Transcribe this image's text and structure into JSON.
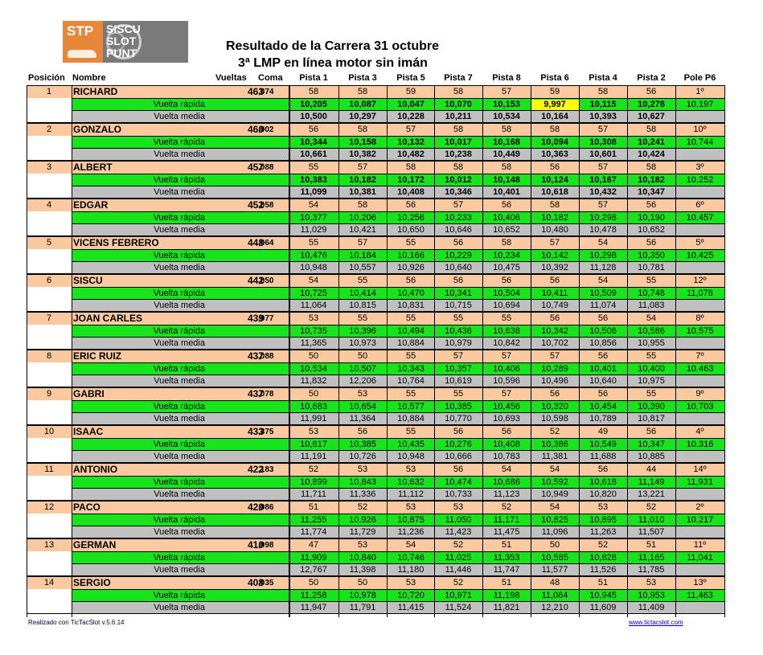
{
  "logo": {
    "left_text": "STP",
    "right_lines": [
      "SISCU",
      "SLOT",
      "PUNT"
    ]
  },
  "title_line1": "Resultado de la Carrera  31 octubre",
  "title_line2": "3ª LMP en línea motor sin imán",
  "headers": {
    "posicion": "Posición",
    "nombre": "Nombre",
    "vueltas": "Vueltas",
    "coma": "Coma",
    "pistas": [
      "Pista 1",
      "Pista 3",
      "Pista 5",
      "Pista 7",
      "Pista 8",
      "Pista 6",
      "Pista 4",
      "Pista 2"
    ],
    "pole": "Pole P6"
  },
  "labels": {
    "fast": "Vuelta rápida",
    "avg": "Vuelta media"
  },
  "colors": {
    "driver_row": "#fbc9a0",
    "fast_row": "#18e41c",
    "avg_row": "#c0c0c0",
    "highlight": "#ffff00"
  },
  "rows": [
    {
      "pos": "1",
      "name": "RICHARD",
      "laps": "463",
      "coma": ",074",
      "tracks": [
        "58",
        "58",
        "59",
        "58",
        "57",
        "59",
        "58",
        "56"
      ],
      "pole": "1º",
      "fast": [
        "10,205",
        "10,087",
        "10,047",
        "10,070",
        "10,153",
        "9,997",
        "10,115",
        "10,278"
      ],
      "pole_fast": "10,197",
      "avg": [
        "10,500",
        "10,297",
        "10,228",
        "10,211",
        "10,534",
        "10,164",
        "10,393",
        "10,627"
      ]
    },
    {
      "pos": "2",
      "name": "GONZALO",
      "laps": "460",
      "coma": ",002",
      "tracks": [
        "56",
        "58",
        "57",
        "58",
        "58",
        "58",
        "57",
        "58"
      ],
      "pole": "10º",
      "fast": [
        "10,344",
        "10,158",
        "10,132",
        "10,017",
        "10,168",
        "10,094",
        "10,308",
        "10,241"
      ],
      "pole_fast": "10,744",
      "avg": [
        "10,661",
        "10,382",
        "10,482",
        "10,238",
        "10,449",
        "10,363",
        "10,601",
        "10,424"
      ]
    },
    {
      "pos": "3",
      "name": "ALBERT",
      "laps": "457",
      "coma": ",088",
      "tracks": [
        "55",
        "57",
        "58",
        "58",
        "58",
        "56",
        "57",
        "58"
      ],
      "pole": "3º",
      "fast": [
        "10,383",
        "10,182",
        "10,172",
        "10,012",
        "10,148",
        "10,124",
        "10,167",
        "10,182"
      ],
      "pole_fast": "10,252",
      "avg": [
        "11,099",
        "10,381",
        "10,408",
        "10,346",
        "10,401",
        "10,618",
        "10,432",
        "10,347"
      ]
    },
    {
      "pos": "4",
      "name": "EDGAR",
      "laps": "452",
      "coma": ",058",
      "tracks": [
        "54",
        "58",
        "56",
        "57",
        "56",
        "58",
        "57",
        "56"
      ],
      "pole": "6º",
      "fast": [
        "10,377",
        "10,206",
        "10,256",
        "10,233",
        "10,406",
        "10,182",
        "10,298",
        "10,190"
      ],
      "pole_fast": "10,457",
      "avg": [
        "11,029",
        "10,421",
        "10,650",
        "10,646",
        "10,652",
        "10,480",
        "10,478",
        "10,652"
      ]
    },
    {
      "pos": "5",
      "name": "VICENS FEBRERO",
      "laps": "448",
      "coma": ",064",
      "tracks": [
        "55",
        "57",
        "55",
        "56",
        "58",
        "57",
        "54",
        "56"
      ],
      "pole": "5º",
      "fast": [
        "10,476",
        "10,184",
        "10,166",
        "10,229",
        "10,234",
        "10,142",
        "10,298",
        "10,350"
      ],
      "pole_fast": "10,425",
      "avg": [
        "10,948",
        "10,557",
        "10,926",
        "10,640",
        "10,475",
        "10,392",
        "11,128",
        "10,781"
      ]
    },
    {
      "pos": "6",
      "name": "SISCU",
      "laps": "442",
      "coma": ",050",
      "tracks": [
        "54",
        "55",
        "56",
        "56",
        "56",
        "56",
        "54",
        "55"
      ],
      "pole": "12º",
      "fast": [
        "10,725",
        "10,414",
        "10,470",
        "10,341",
        "10,504",
        "10,411",
        "10,509",
        "10,748"
      ],
      "pole_fast": "11,078",
      "avg": [
        "11,064",
        "10,815",
        "10,831",
        "10,715",
        "10,694",
        "10,749",
        "11,074",
        "11,083"
      ]
    },
    {
      "pos": "7",
      "name": "JOAN CARLES",
      "laps": "439",
      "coma": ",077",
      "tracks": [
        "53",
        "55",
        "55",
        "55",
        "55",
        "56",
        "56",
        "54"
      ],
      "pole": "8º",
      "fast": [
        "10,735",
        "10,396",
        "10,494",
        "10,436",
        "10,638",
        "10,342",
        "10,506",
        "10,586"
      ],
      "pole_fast": "10,575",
      "avg": [
        "11,365",
        "10,973",
        "10,884",
        "10,979",
        "10,842",
        "10,702",
        "10,856",
        "10,955"
      ]
    },
    {
      "pos": "8",
      "name": "ERIC RUIZ",
      "laps": "437",
      "coma": ",088",
      "tracks": [
        "50",
        "50",
        "55",
        "57",
        "57",
        "57",
        "56",
        "55"
      ],
      "pole": "7º",
      "fast": [
        "10,534",
        "10,507",
        "10,343",
        "10,357",
        "10,406",
        "10,289",
        "10,401",
        "10,400"
      ],
      "pole_fast": "10,463",
      "avg": [
        "11,832",
        "12,206",
        "10,764",
        "10,619",
        "10,596",
        "10,496",
        "10,640",
        "10,975"
      ]
    },
    {
      "pos": "9",
      "name": "GABRI",
      "laps": "437",
      "coma": ",078",
      "tracks": [
        "50",
        "53",
        "55",
        "55",
        "57",
        "56",
        "56",
        "55"
      ],
      "pole": "9º",
      "fast": [
        "10,683",
        "10,654",
        "10,577",
        "10,385",
        "10,456",
        "10,320",
        "10,454",
        "10,390"
      ],
      "pole_fast": "10,703",
      "avg": [
        "11,991",
        "11,364",
        "10,884",
        "10,770",
        "10,693",
        "10,598",
        "10,789",
        "10,817"
      ]
    },
    {
      "pos": "10",
      "name": "ISAAC",
      "laps": "433",
      "coma": ",375",
      "tracks": [
        "53",
        "56",
        "55",
        "56",
        "56",
        "52",
        "49",
        "56"
      ],
      "pole": "4º",
      "fast": [
        "10,617",
        "10,385",
        "10,435",
        "10,276",
        "10,408",
        "10,386",
        "10,549",
        "10,347"
      ],
      "pole_fast": "10,316",
      "avg": [
        "11,191",
        "10,726",
        "10,948",
        "10,666",
        "10,783",
        "11,381",
        "11,688",
        "10,885"
      ]
    },
    {
      "pos": "11",
      "name": "ANTONIO",
      "laps": "422",
      "coma": ",183",
      "tracks": [
        "52",
        "53",
        "53",
        "56",
        "54",
        "54",
        "56",
        "44"
      ],
      "pole": "14º",
      "fast": [
        "10,899",
        "10,843",
        "10,632",
        "10,474",
        "10,686",
        "10,592",
        "10,618",
        "11,149"
      ],
      "pole_fast": "11,931",
      "avg": [
        "11,711",
        "11,336",
        "11,112",
        "10,733",
        "11,123",
        "10,949",
        "10,820",
        "13,221"
      ]
    },
    {
      "pos": "12",
      "name": "PACO",
      "laps": "420",
      "coma": ",086",
      "tracks": [
        "51",
        "52",
        "53",
        "53",
        "52",
        "54",
        "53",
        "52"
      ],
      "pole": "2º",
      "fast": [
        "11,255",
        "10,926",
        "10,875",
        "11,050",
        "11,171",
        "10,825",
        "10,895",
        "11,010"
      ],
      "pole_fast": "10,217",
      "avg": [
        "11,774",
        "11,729",
        "11,236",
        "11,423",
        "11,475",
        "11,096",
        "11,263",
        "11,507"
      ]
    },
    {
      "pos": "13",
      "name": "GERMAN",
      "laps": "410",
      "coma": ",098",
      "tracks": [
        "47",
        "53",
        "54",
        "52",
        "51",
        "50",
        "52",
        "51"
      ],
      "pole": "11º",
      "fast": [
        "11,909",
        "10,840",
        "10,746",
        "11,025",
        "11,353",
        "10,585",
        "10,828",
        "11,165"
      ],
      "pole_fast": "11,041",
      "avg": [
        "12,767",
        "11,398",
        "11,180",
        "11,446",
        "11,747",
        "11,577",
        "11,526",
        "11,785"
      ]
    },
    {
      "pos": "14",
      "name": "SERGIO",
      "laps": "408",
      "coma": ",035",
      "tracks": [
        "50",
        "50",
        "53",
        "52",
        "51",
        "48",
        "51",
        "53"
      ],
      "pole": "13º",
      "fast": [
        "11,258",
        "10,978",
        "10,720",
        "10,971",
        "11,198",
        "11,064",
        "10,945",
        "10,953"
      ],
      "pole_fast": "11,463",
      "avg": [
        "11,947",
        "11,791",
        "11,415",
        "11,524",
        "11,821",
        "12,210",
        "11,609",
        "11,409"
      ]
    }
  ],
  "footer_left": "Realizado con TicTacSlot v.5.6.14",
  "footer_right": "www.tictacslot.com"
}
